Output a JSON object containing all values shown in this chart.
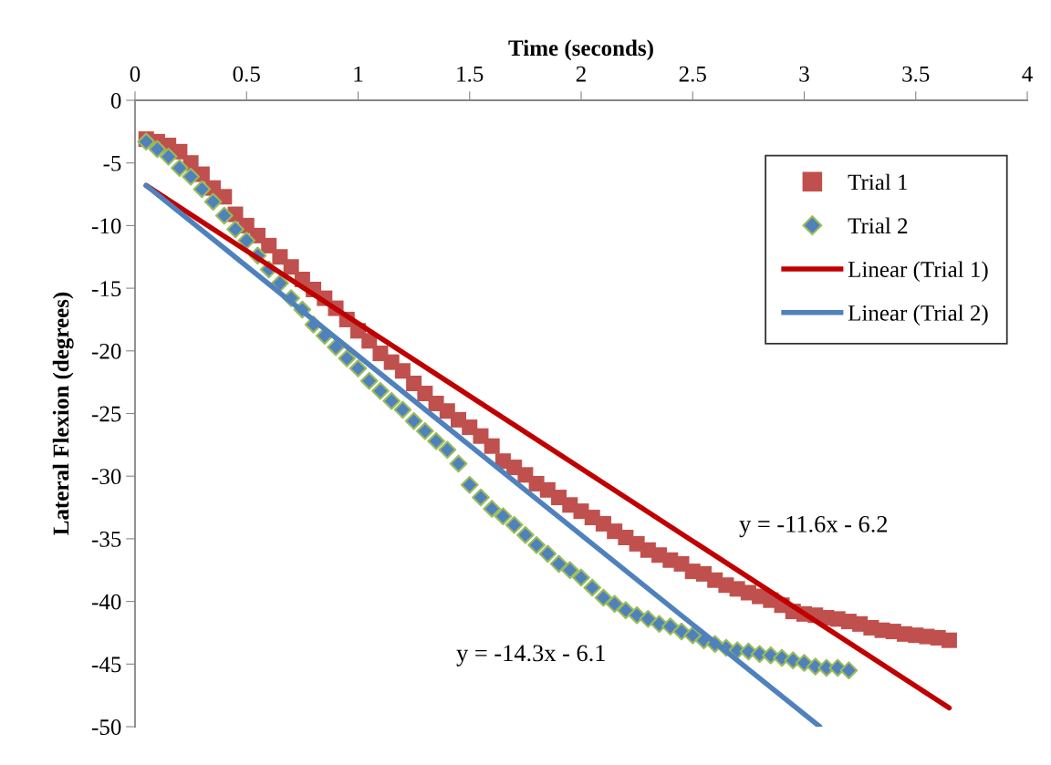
{
  "chart_data": {
    "type": "scatter",
    "xlabel": "Time (seconds)",
    "ylabel": "Lateral Flexion (degrees)",
    "xlim": [
      0,
      4
    ],
    "xticks": [
      0,
      0.5,
      1,
      1.5,
      2,
      2.5,
      3,
      3.5,
      4
    ],
    "ylim": [
      -50,
      0
    ],
    "yticks": [
      0,
      -5,
      -10,
      -15,
      -20,
      -25,
      -30,
      -35,
      -40,
      -45,
      -50
    ],
    "grid": false,
    "legend": "top right",
    "series": [
      {
        "name": "Trial 1",
        "marker": "square",
        "color": "#c0504d",
        "x": [
          0.05,
          0.1,
          0.15,
          0.2,
          0.25,
          0.3,
          0.35,
          0.4,
          0.45,
          0.5,
          0.55,
          0.6,
          0.65,
          0.7,
          0.75,
          0.8,
          0.85,
          0.9,
          0.95,
          1.0,
          1.05,
          1.1,
          1.15,
          1.2,
          1.25,
          1.3,
          1.35,
          1.4,
          1.45,
          1.5,
          1.55,
          1.6,
          1.65,
          1.7,
          1.75,
          1.8,
          1.85,
          1.9,
          1.95,
          2.0,
          2.05,
          2.1,
          2.15,
          2.2,
          2.25,
          2.3,
          2.35,
          2.4,
          2.45,
          2.5,
          2.55,
          2.6,
          2.65,
          2.7,
          2.75,
          2.8,
          2.85,
          2.9,
          2.95,
          3.0,
          3.05,
          3.1,
          3.15,
          3.2,
          3.25,
          3.3,
          3.35,
          3.4,
          3.45,
          3.5,
          3.55,
          3.6,
          3.65
        ],
        "values": [
          -3.1,
          -3.3,
          -3.6,
          -4.1,
          -5.0,
          -5.9,
          -7.0,
          -7.7,
          -9.1,
          -10.0,
          -10.8,
          -11.6,
          -12.5,
          -13.3,
          -14.3,
          -15.1,
          -15.8,
          -16.6,
          -17.5,
          -18.4,
          -19.2,
          -20.2,
          -20.9,
          -21.6,
          -22.6,
          -23.4,
          -24.2,
          -24.8,
          -25.5,
          -26.1,
          -26.8,
          -27.6,
          -28.8,
          -29.3,
          -29.9,
          -30.6,
          -31.1,
          -31.7,
          -32.3,
          -32.8,
          -33.3,
          -33.8,
          -34.4,
          -34.9,
          -35.4,
          -35.9,
          -36.3,
          -36.7,
          -37.0,
          -37.6,
          -37.8,
          -38.3,
          -38.7,
          -39.0,
          -39.3,
          -39.6,
          -39.9,
          -40.3,
          -40.8,
          -41.0,
          -41.1,
          -41.3,
          -41.4,
          -41.6,
          -41.8,
          -42.1,
          -42.3,
          -42.4,
          -42.6,
          -42.7,
          -42.8,
          -42.9,
          -43.1
        ]
      },
      {
        "name": "Trial 2",
        "marker": "diamond",
        "color": "#4f81bd",
        "x": [
          0.05,
          0.1,
          0.15,
          0.2,
          0.25,
          0.3,
          0.35,
          0.4,
          0.45,
          0.5,
          0.55,
          0.6,
          0.65,
          0.7,
          0.75,
          0.8,
          0.85,
          0.9,
          0.95,
          1.0,
          1.05,
          1.1,
          1.15,
          1.2,
          1.25,
          1.3,
          1.35,
          1.4,
          1.45,
          1.5,
          1.55,
          1.6,
          1.65,
          1.7,
          1.75,
          1.8,
          1.85,
          1.9,
          1.95,
          2.0,
          2.05,
          2.1,
          2.15,
          2.2,
          2.25,
          2.3,
          2.35,
          2.4,
          2.45,
          2.5,
          2.55,
          2.6,
          2.65,
          2.7,
          2.75,
          2.8,
          2.85,
          2.9,
          2.95,
          3.0,
          3.05,
          3.1,
          3.15,
          3.2
        ],
        "values": [
          -3.3,
          -3.9,
          -4.5,
          -5.4,
          -6.1,
          -7.1,
          -8.1,
          -9.2,
          -10.3,
          -11.2,
          -12.4,
          -13.5,
          -14.6,
          -15.8,
          -16.7,
          -17.9,
          -18.8,
          -19.7,
          -20.6,
          -21.4,
          -22.4,
          -23.2,
          -24.0,
          -24.7,
          -25.6,
          -26.4,
          -27.2,
          -27.9,
          -29.0,
          -30.7,
          -31.7,
          -32.6,
          -33.2,
          -33.9,
          -34.7,
          -35.5,
          -36.2,
          -37.0,
          -37.5,
          -38.1,
          -38.9,
          -39.7,
          -40.2,
          -40.7,
          -41.1,
          -41.4,
          -41.8,
          -42.0,
          -42.4,
          -42.7,
          -43.1,
          -43.4,
          -43.7,
          -43.9,
          -44.0,
          -44.2,
          -44.3,
          -44.5,
          -44.7,
          -44.9,
          -45.2,
          -45.3,
          -45.3,
          -45.5
        ]
      },
      {
        "name": "Linear (Trial 1)",
        "type": "line",
        "marker": "none",
        "line_style": "solid",
        "color": "#c00000",
        "x": [
          0.05,
          3.65
        ],
        "values": [
          -6.8,
          -48.5
        ]
      },
      {
        "name": "Linear (Trial 2)",
        "type": "line",
        "marker": "none",
        "line_style": "solid",
        "color": "#4f81bd",
        "x": [
          0.05,
          3.07
        ],
        "values": [
          -6.8,
          -50.0
        ]
      }
    ],
    "annotations": [
      "y = -11.6x - 6.2",
      "y = -14.3x - 6.1"
    ]
  }
}
